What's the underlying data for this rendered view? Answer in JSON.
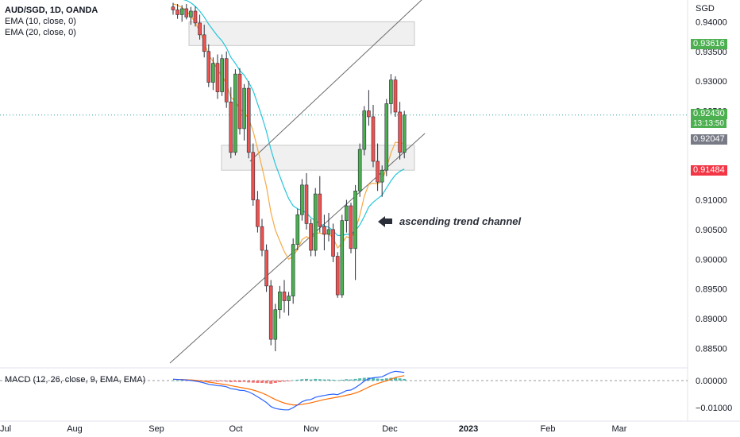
{
  "legend": {
    "symbol": "AUD/SGD, 1D, OANDA",
    "ema10": "EMA (10, close, 0)",
    "ema20": "EMA (20, close, 0)"
  },
  "macd_label": "MACD (12, 26, close, 9, EMA, EMA)",
  "annotation": "ascending trend channel",
  "price_axis": {
    "unit": "SGD",
    "ticks": [
      "0.94000",
      "0.93500",
      "0.93000",
      "0.92500",
      "0.92000",
      "0.91500",
      "0.91000",
      "0.90500",
      "0.90000",
      "0.89500",
      "0.89000",
      "0.88500"
    ]
  },
  "macd_axis": {
    "ticks": [
      "0.00000",
      "−0.01000"
    ]
  },
  "time_axis": {
    "ticks": [
      "Jul",
      "Aug",
      "Sep",
      "Oct",
      "Nov",
      "Dec",
      "2023",
      "Feb",
      "Mar"
    ]
  },
  "badges": {
    "target": "0.93616",
    "current": "0.92430",
    "countdown": "13:13:50",
    "entry": "0.92047",
    "stop": "0.91484"
  },
  "colors": {
    "up": "#26a69a",
    "up_body": "#4caf50",
    "down": "#ef5350",
    "ema10": "#f6a945",
    "ema20": "#26c6da",
    "macd_line": "#2962ff",
    "signal_line": "#ff6d00",
    "target_zone": "#c8e6c9",
    "stop_zone": "#ffcdd2",
    "current_badge": "#4caf50",
    "entry_badge": "#787b86",
    "stop_badge": "#f23645"
  },
  "chart_data": {
    "type": "candlestick",
    "title": "AUD/SGD, 1D, OANDA",
    "ylim": [
      0.8825,
      0.943
    ],
    "candles": [
      {
        "o": 0.9425,
        "h": 0.9432,
        "l": 0.9412,
        "c": 0.942
      },
      {
        "o": 0.942,
        "h": 0.943,
        "l": 0.9405,
        "c": 0.9412
      },
      {
        "o": 0.9412,
        "h": 0.9428,
        "l": 0.94,
        "c": 0.9422
      },
      {
        "o": 0.9422,
        "h": 0.943,
        "l": 0.9404,
        "c": 0.9408
      },
      {
        "o": 0.9408,
        "h": 0.9425,
        "l": 0.9395,
        "c": 0.9418
      },
      {
        "o": 0.9418,
        "h": 0.9426,
        "l": 0.9392,
        "c": 0.9398
      },
      {
        "o": 0.9398,
        "h": 0.9412,
        "l": 0.937,
        "c": 0.9378
      },
      {
        "o": 0.9378,
        "h": 0.9395,
        "l": 0.934,
        "c": 0.935
      },
      {
        "o": 0.935,
        "h": 0.9362,
        "l": 0.929,
        "c": 0.9298
      },
      {
        "o": 0.9298,
        "h": 0.934,
        "l": 0.9285,
        "c": 0.933
      },
      {
        "o": 0.933,
        "h": 0.9345,
        "l": 0.927,
        "c": 0.9282
      },
      {
        "o": 0.9282,
        "h": 0.9345,
        "l": 0.9275,
        "c": 0.9338
      },
      {
        "o": 0.9338,
        "h": 0.935,
        "l": 0.9255,
        "c": 0.9265
      },
      {
        "o": 0.9265,
        "h": 0.929,
        "l": 0.917,
        "c": 0.918
      },
      {
        "o": 0.918,
        "h": 0.932,
        "l": 0.9175,
        "c": 0.9312
      },
      {
        "o": 0.9312,
        "h": 0.9322,
        "l": 0.921,
        "c": 0.922
      },
      {
        "o": 0.922,
        "h": 0.9295,
        "l": 0.92,
        "c": 0.9288
      },
      {
        "o": 0.9288,
        "h": 0.93,
        "l": 0.917,
        "c": 0.918
      },
      {
        "o": 0.918,
        "h": 0.9195,
        "l": 0.909,
        "c": 0.91
      },
      {
        "o": 0.91,
        "h": 0.9115,
        "l": 0.9045,
        "c": 0.9055
      },
      {
        "o": 0.9055,
        "h": 0.9068,
        "l": 0.9005,
        "c": 0.9015
      },
      {
        "o": 0.9015,
        "h": 0.9025,
        "l": 0.8945,
        "c": 0.8955
      },
      {
        "o": 0.8955,
        "h": 0.8965,
        "l": 0.8855,
        "c": 0.8865
      },
      {
        "o": 0.8865,
        "h": 0.8925,
        "l": 0.8845,
        "c": 0.8915
      },
      {
        "o": 0.8915,
        "h": 0.8955,
        "l": 0.89,
        "c": 0.8945
      },
      {
        "o": 0.8945,
        "h": 0.8965,
        "l": 0.891,
        "c": 0.893
      },
      {
        "o": 0.893,
        "h": 0.8945,
        "l": 0.8905,
        "c": 0.8938
      },
      {
        "o": 0.8938,
        "h": 0.9035,
        "l": 0.8925,
        "c": 0.9025
      },
      {
        "o": 0.9025,
        "h": 0.9085,
        "l": 0.9015,
        "c": 0.9075
      },
      {
        "o": 0.9075,
        "h": 0.9135,
        "l": 0.9065,
        "c": 0.9125
      },
      {
        "o": 0.9125,
        "h": 0.9145,
        "l": 0.905,
        "c": 0.906
      },
      {
        "o": 0.906,
        "h": 0.9068,
        "l": 0.9005,
        "c": 0.9015
      },
      {
        "o": 0.9015,
        "h": 0.912,
        "l": 0.9005,
        "c": 0.911
      },
      {
        "o": 0.911,
        "h": 0.914,
        "l": 0.9045,
        "c": 0.9055
      },
      {
        "o": 0.9055,
        "h": 0.9075,
        "l": 0.9015,
        "c": 0.9042
      },
      {
        "o": 0.9042,
        "h": 0.9078,
        "l": 0.903,
        "c": 0.905
      },
      {
        "o": 0.905,
        "h": 0.906,
        "l": 0.8995,
        "c": 0.9005
      },
      {
        "o": 0.9005,
        "h": 0.9012,
        "l": 0.8935,
        "c": 0.894
      },
      {
        "o": 0.894,
        "h": 0.9075,
        "l": 0.8935,
        "c": 0.9065
      },
      {
        "o": 0.9065,
        "h": 0.91,
        "l": 0.9045,
        "c": 0.909
      },
      {
        "o": 0.909,
        "h": 0.9095,
        "l": 0.901,
        "c": 0.9018
      },
      {
        "o": 0.9018,
        "h": 0.9125,
        "l": 0.8965,
        "c": 0.9115
      },
      {
        "o": 0.9115,
        "h": 0.9195,
        "l": 0.9105,
        "c": 0.9185
      },
      {
        "o": 0.9185,
        "h": 0.9258,
        "l": 0.9175,
        "c": 0.925
      },
      {
        "o": 0.925,
        "h": 0.9285,
        "l": 0.9225,
        "c": 0.924
      },
      {
        "o": 0.924,
        "h": 0.926,
        "l": 0.9155,
        "c": 0.9165
      },
      {
        "o": 0.9165,
        "h": 0.9195,
        "l": 0.9115,
        "c": 0.913
      },
      {
        "o": 0.913,
        "h": 0.9158,
        "l": 0.9105,
        "c": 0.915
      },
      {
        "o": 0.915,
        "h": 0.927,
        "l": 0.914,
        "c": 0.9262
      },
      {
        "o": 0.9262,
        "h": 0.9312,
        "l": 0.9245,
        "c": 0.9302
      },
      {
        "o": 0.9302,
        "h": 0.9308,
        "l": 0.924,
        "c": 0.9248
      },
      {
        "o": 0.9248,
        "h": 0.9265,
        "l": 0.9168,
        "c": 0.918
      },
      {
        "o": 0.918,
        "h": 0.925,
        "l": 0.917,
        "c": 0.9243
      }
    ],
    "ema10": [
      0.943,
      0.9428,
      0.9424,
      0.9418,
      0.941,
      0.9398,
      0.9384,
      0.9366,
      0.9344,
      0.9333,
      0.9319,
      0.9309,
      0.9295,
      0.9273,
      0.9266,
      0.9253,
      0.9248,
      0.9236,
      0.9216,
      0.9186,
      0.9155,
      0.9122,
      0.9079,
      0.9049,
      0.9031,
      0.9013,
      0.9,
      0.9005,
      0.9017,
      0.9033,
      0.9038,
      0.9034,
      0.9044,
      0.9044,
      0.9042,
      0.9043,
      0.9036,
      0.9019,
      0.9027,
      0.9038,
      0.9035,
      0.9049,
      0.9074,
      0.9106,
      0.9126,
      0.9128,
      0.9127,
      0.9132,
      0.9154,
      0.9179,
      0.9197,
      0.9196,
      0.9195
    ],
    "ema20": [
      0.944,
      0.944,
      0.9438,
      0.9436,
      0.9432,
      0.9426,
      0.9418,
      0.9408,
      0.9396,
      0.9386,
      0.9376,
      0.9368,
      0.9356,
      0.934,
      0.933,
      0.9318,
      0.931,
      0.9298,
      0.9284,
      0.9262,
      0.924,
      0.9215,
      0.9185,
      0.916,
      0.914,
      0.912,
      0.9102,
      0.909,
      0.9085,
      0.9082,
      0.9078,
      0.907,
      0.9065,
      0.906,
      0.9056,
      0.9054,
      0.9048,
      0.904,
      0.904,
      0.9042,
      0.9042,
      0.9048,
      0.9058,
      0.9072,
      0.9088,
      0.9096,
      0.9102,
      0.9108,
      0.912,
      0.9132,
      0.9142,
      0.9148,
      0.9152
    ],
    "zones": {
      "resistance": [
        0.936,
        0.94
      ],
      "support": [
        0.915,
        0.9192
      ]
    },
    "position": {
      "target": 0.93616,
      "entry": 0.92047,
      "stop": 0.91484
    },
    "current_price": 0.9243,
    "channel": {
      "lower": [
        [
          0.8825,
          0
        ],
        [
          0.9212,
          52
        ]
      ],
      "upper": [
        [
          0.9165,
          18
        ],
        [
          0.9442,
          52
        ]
      ]
    },
    "macd": {
      "ylim": [
        -0.0135,
        0.0035
      ],
      "hist": [
        0,
        0,
        0,
        -0.0001,
        -0.0001,
        -0.0002,
        -0.0002,
        -0.0003,
        -0.0004,
        -0.0003,
        -0.0004,
        -0.0003,
        -0.0004,
        -0.0006,
        -0.0005,
        -0.0006,
        -0.0005,
        -0.0007,
        -0.0008,
        -0.0009,
        -0.0009,
        -0.001,
        -0.0012,
        -0.0009,
        -0.0006,
        -0.0004,
        -0.0003,
        0.0001,
        0.0003,
        0.0005,
        0.0006,
        0.0004,
        0.0006,
        0.0005,
        0.0004,
        0.0004,
        0.0003,
        0.0001,
        0.0003,
        0.0005,
        0.0004,
        0.0006,
        0.0008,
        0.001,
        0.0011,
        0.0009,
        0.0007,
        0.0006,
        0.0008,
        0.001,
        0.001,
        0.0008,
        0.0006
      ],
      "macd_line": [
        0.0005,
        0.0004,
        0.0003,
        0.0002,
        0.0,
        -0.0002,
        -0.0005,
        -0.0009,
        -0.0014,
        -0.0016,
        -0.0019,
        -0.002,
        -0.0023,
        -0.003,
        -0.0032,
        -0.0036,
        -0.0037,
        -0.0042,
        -0.005,
        -0.006,
        -0.007,
        -0.0081,
        -0.0096,
        -0.0103,
        -0.0106,
        -0.0108,
        -0.0108,
        -0.01,
        -0.009,
        -0.0078,
        -0.0072,
        -0.007,
        -0.0062,
        -0.0058,
        -0.0055,
        -0.0052,
        -0.005,
        -0.0052,
        -0.0045,
        -0.0037,
        -0.0035,
        -0.0026,
        -0.0015,
        -0.0002,
        0.0007,
        0.001,
        0.0012,
        0.0014,
        0.0022,
        0.003,
        0.0034,
        0.0032,
        0.003
      ],
      "signal_line": [
        0.0004,
        0.0004,
        0.0004,
        0.0003,
        0.0002,
        0.0001,
        -0.0001,
        -0.0003,
        -0.0006,
        -0.0008,
        -0.0011,
        -0.0013,
        -0.0015,
        -0.0019,
        -0.0022,
        -0.0025,
        -0.0028,
        -0.0031,
        -0.0035,
        -0.004,
        -0.0046,
        -0.0053,
        -0.0062,
        -0.007,
        -0.0077,
        -0.0083,
        -0.0087,
        -0.009,
        -0.009,
        -0.0088,
        -0.0085,
        -0.0082,
        -0.0078,
        -0.0074,
        -0.007,
        -0.0067,
        -0.0064,
        -0.0061,
        -0.0058,
        -0.0054,
        -0.0051,
        -0.0046,
        -0.004,
        -0.0032,
        -0.0024,
        -0.0017,
        -0.0011,
        -0.0006,
        -0.0001,
        0.0005,
        0.0011,
        0.0015,
        0.0018
      ]
    }
  }
}
